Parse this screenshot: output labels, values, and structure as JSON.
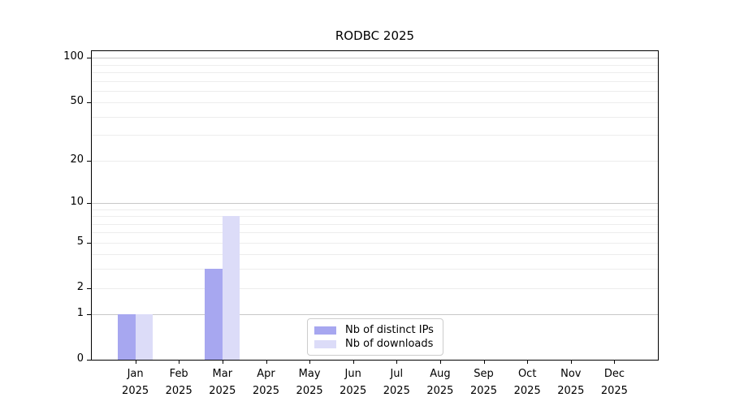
{
  "chart_data": {
    "type": "bar",
    "title": "RODBC 2025",
    "yscale": "log1p",
    "ylim": [
      0,
      111
    ],
    "categories": [
      "Jan",
      "Feb",
      "Mar",
      "Apr",
      "May",
      "Jun",
      "Jul",
      "Aug",
      "Sep",
      "Oct",
      "Nov",
      "Dec"
    ],
    "x_year_label": "2025",
    "series": [
      {
        "name": "Nb of distinct IPs",
        "color": "#a7a7f0",
        "values": [
          1,
          0,
          3,
          0,
          0,
          0,
          0,
          0,
          0,
          0,
          0,
          0
        ]
      },
      {
        "name": "Nb of downloads",
        "color": "#dcdcf8",
        "values": [
          1,
          0,
          8,
          0,
          0,
          0,
          0,
          0,
          0,
          0,
          0,
          0
        ]
      }
    ],
    "y_ticks": [
      0,
      1,
      2,
      5,
      10,
      20,
      50,
      100
    ],
    "gridlines": {
      "major_values": [
        1,
        10,
        100
      ],
      "minor_values": [
        2,
        3,
        4,
        5,
        6,
        7,
        8,
        9,
        20,
        30,
        40,
        50,
        60,
        70,
        80,
        90
      ],
      "major_color": "#c8c8c8",
      "minor_color": "#ededed"
    },
    "legend_position": "bottom-center-inside",
    "axis_color": "#000000",
    "background_color": "#ffffff"
  }
}
